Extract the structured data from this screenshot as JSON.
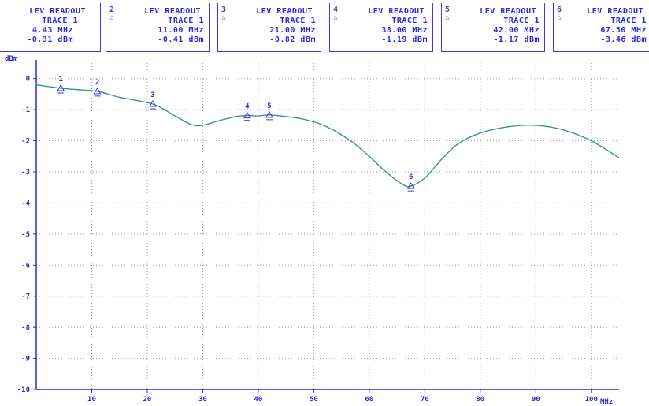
{
  "readouts": [
    {
      "marker": "",
      "title": "LEV READOUT",
      "trace": "TRACE 1",
      "freq": "4.43 MHz",
      "level": "-0.31 dBm"
    },
    {
      "marker": "2",
      "title": "LEV READOUT",
      "trace": "TRACE 1",
      "freq": "11.00 MHz",
      "level": "-0.41 dBm"
    },
    {
      "marker": "3",
      "title": "LEV READOUT",
      "trace": "TRACE 1",
      "freq": "21.00 MHz",
      "level": "-0.82 dBm"
    },
    {
      "marker": "4",
      "title": "LEV READOUT",
      "trace": "TRACE 1",
      "freq": "38.00 MHz",
      "level": "-1.19 dBm"
    },
    {
      "marker": "5",
      "title": "LEV READOUT",
      "trace": "TRACE 1",
      "freq": "42.00 MHz",
      "level": "-1.17 dBm"
    },
    {
      "marker": "6",
      "title": "LEV READOUT",
      "trace": "TRACE 1",
      "freq": "67.50 MHz",
      "level": "-3.46 dBm"
    }
  ],
  "colors": {
    "trace": "#3f8f8f",
    "grid": "#9a9a9a",
    "axis": "#2a2ad8",
    "marker": "#3a3ae0"
  },
  "chart_data": {
    "type": "line",
    "ylabel": "dBm",
    "xunit": "MHz",
    "xlim": [
      0,
      105
    ],
    "ylim": [
      -10,
      0.5
    ],
    "xticks": [
      10,
      20,
      30,
      40,
      50,
      60,
      70,
      80,
      90,
      100
    ],
    "xtick_labels": [
      "10",
      "20",
      "30",
      "40",
      "50",
      "60",
      "70",
      "80",
      "90",
      "100"
    ],
    "yticks": [
      0,
      -1,
      -2,
      -3,
      -4,
      -5,
      -6,
      -7,
      -8,
      -9,
      -10
    ],
    "ytick_labels": [
      "0",
      "-1",
      "-2",
      "-3",
      "-4",
      "-5",
      "-6",
      "-7",
      "-8",
      "-9",
      "-10"
    ],
    "grid": true,
    "series": [
      {
        "x": [
          0,
          2,
          4.43,
          7,
          11,
          15,
          21,
          25,
          28,
          30,
          33,
          36,
          38,
          40,
          42,
          45,
          48,
          51,
          54,
          57,
          60,
          63,
          66,
          67.5,
          70,
          73,
          76,
          80,
          85,
          90,
          95,
          100,
          105
        ],
        "y": [
          -0.2,
          -0.25,
          -0.31,
          -0.35,
          -0.41,
          -0.6,
          -0.82,
          -1.2,
          -1.48,
          -1.5,
          -1.35,
          -1.22,
          -1.19,
          -1.2,
          -1.17,
          -1.22,
          -1.3,
          -1.45,
          -1.7,
          -2.05,
          -2.5,
          -3.0,
          -3.4,
          -3.46,
          -3.2,
          -2.6,
          -2.1,
          -1.75,
          -1.55,
          -1.5,
          -1.65,
          -2.0,
          -2.55
        ]
      }
    ],
    "markers": [
      {
        "label": "1",
        "x": 4.43,
        "y": -0.31
      },
      {
        "label": "2",
        "x": 11.0,
        "y": -0.41
      },
      {
        "label": "3",
        "x": 21.0,
        "y": -0.82
      },
      {
        "label": "4",
        "x": 38.0,
        "y": -1.19
      },
      {
        "label": "5",
        "x": 42.0,
        "y": -1.17
      },
      {
        "label": "6",
        "x": 67.5,
        "y": -3.46
      }
    ]
  }
}
